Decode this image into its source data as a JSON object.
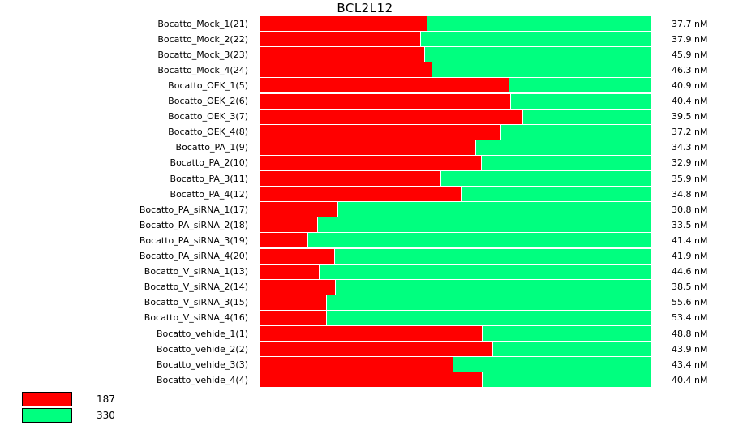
{
  "chart_data": {
    "type": "bar",
    "stacked": true,
    "orientation": "horizontal",
    "title": "BCL2L12",
    "categories": [
      "Bocatto_Mock_1(21)",
      "Bocatto_Mock_2(22)",
      "Bocatto_Mock_3(23)",
      "Bocatto_Mock_4(24)",
      "Bocatto_OEK_1(5)",
      "Bocatto_OEK_2(6)",
      "Bocatto_OEK_3(7)",
      "Bocatto_OEK_4(8)",
      "Bocatto_PA_1(9)",
      "Bocatto_PA_2(10)",
      "Bocatto_PA_3(11)",
      "Bocatto_PA_4(12)",
      "Bocatto_PA_siRNA_1(17)",
      "Bocatto_PA_siRNA_2(18)",
      "Bocatto_PA_siRNA_3(19)",
      "Bocatto_PA_siRNA_4(20)",
      "Bocatto_V_siRNA_1(13)",
      "Bocatto_V_siRNA_2(14)",
      "Bocatto_V_siRNA_3(15)",
      "Bocatto_V_siRNA_4(16)",
      "Bocatto_vehide_1(1)",
      "Bocatto_vehide_2(2)",
      "Bocatto_vehide_3(3)",
      "Bocatto_vehide_4(4)"
    ],
    "series": [
      {
        "name": "187",
        "color": "#ff0000",
        "values": [
          0.428,
          0.41,
          0.422,
          0.44,
          0.637,
          0.642,
          0.673,
          0.616,
          0.551,
          0.566,
          0.462,
          0.514,
          0.2,
          0.148,
          0.122,
          0.19,
          0.152,
          0.193,
          0.17,
          0.17,
          0.568,
          0.596,
          0.493,
          0.568
        ]
      },
      {
        "name": "330",
        "color": "#00ff7f",
        "values": [
          0.572,
          0.59,
          0.578,
          0.56,
          0.363,
          0.358,
          0.327,
          0.384,
          0.449,
          0.434,
          0.538,
          0.486,
          0.8,
          0.852,
          0.878,
          0.81,
          0.848,
          0.807,
          0.83,
          0.83,
          0.432,
          0.404,
          0.507,
          0.432
        ]
      }
    ],
    "value_labels": [
      "37.7 nM",
      "37.9 nM",
      "45.9 nM",
      "46.3 nM",
      "40.9 nM",
      "40.4 nM",
      "39.5 nM",
      "37.2 nM",
      "34.3 nM",
      "32.9 nM",
      "35.9 nM",
      "34.8 nM",
      "30.8 nM",
      "33.5 nM",
      "41.4 nM",
      "41.9 nM",
      "44.6 nM",
      "38.5 nM",
      "55.6 nM",
      "53.4 nM",
      "48.8 nM",
      "43.9 nM",
      "43.4 nM",
      "40.4 nM"
    ],
    "legend": [
      {
        "label": "187",
        "color": "#ff0000"
      },
      {
        "label": "330",
        "color": "#00ff7f"
      }
    ],
    "legend_position": "bottom-left",
    "xlabel": "",
    "ylabel": "",
    "grid": false
  }
}
